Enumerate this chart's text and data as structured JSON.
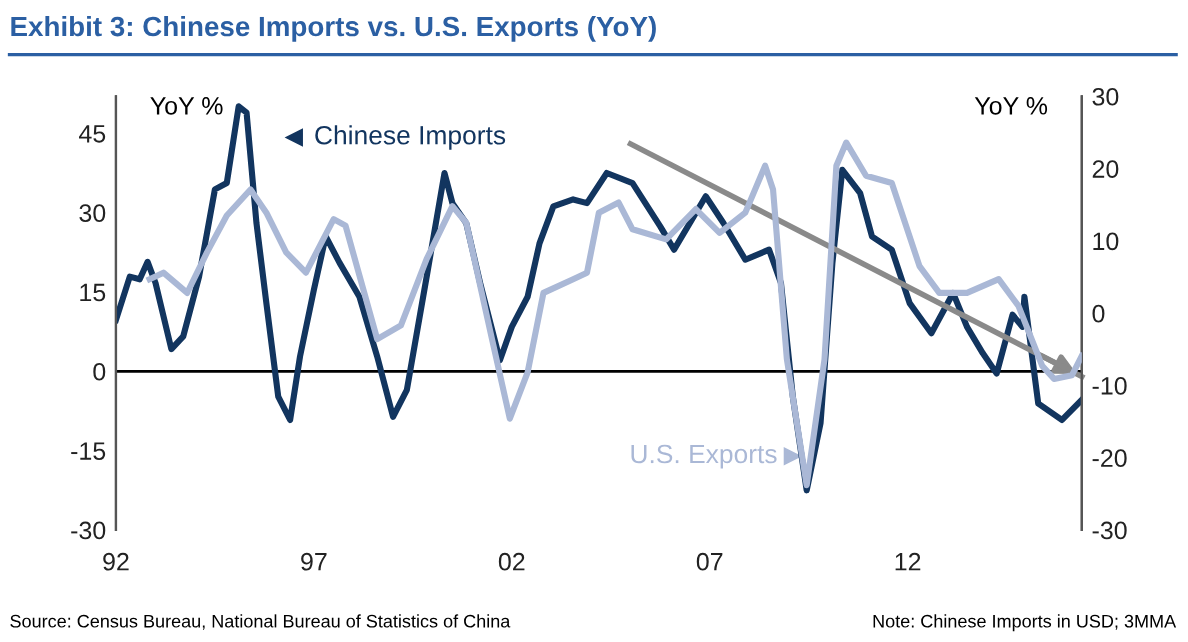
{
  "chart_data": {
    "type": "line",
    "title": "Exhibit 3: Chinese Imports vs. U.S. Exports (YoY)",
    "ylabel": "YoY %",
    "y2label": "YoY %",
    "xlim": [
      1992,
      2016.4
    ],
    "xticks": [
      {
        "value": 1992,
        "label": "92"
      },
      {
        "value": 1997,
        "label": "97"
      },
      {
        "value": 2002,
        "label": "02"
      },
      {
        "value": 2007,
        "label": "07"
      },
      {
        "value": 2012,
        "label": "12"
      }
    ],
    "ylim": [
      -30,
      52
    ],
    "yticks": [
      -30,
      -15,
      0,
      15,
      30,
      45
    ],
    "y2lim": [
      -30,
      30
    ],
    "y2ticks": [
      -30,
      -20,
      -10,
      0,
      10,
      20,
      30
    ],
    "grid": false,
    "legend": "top left",
    "ref_lines": [
      {
        "axis": "y",
        "value": 0,
        "color": "#000000"
      }
    ],
    "series": [
      {
        "name": "Chinese Imports",
        "color": "#12355f",
        "x": [
          1992.0,
          1992.35,
          1992.6,
          1992.8,
          1993.0,
          1993.4,
          1993.7,
          1994.1,
          1994.5,
          1994.8,
          1995.1,
          1995.3,
          1995.55,
          1995.8,
          1996.1,
          1996.4,
          1996.65,
          1997.0,
          1997.3,
          1997.65,
          1998.15,
          1998.6,
          1999.0,
          1999.35,
          1999.85,
          2000.3,
          2000.5,
          2000.85,
          2001.2,
          2001.7,
          2002.0,
          2002.4,
          2002.7,
          2003.05,
          2003.55,
          2003.9,
          2004.4,
          2005.05,
          2005.75,
          2006.1,
          2006.9,
          2007.35,
          2007.9,
          2008.5,
          2008.8,
          2009.1,
          2009.45,
          2009.8,
          2010.1,
          2010.35,
          2010.8,
          2011.1,
          2011.6,
          2012.05,
          2012.6,
          2013.15,
          2013.5,
          2013.9,
          2014.25,
          2014.65,
          2014.9,
          2014.95,
          2015.3,
          2015.9,
          2016.4
        ],
        "values": [
          9.7,
          17.9,
          17.4,
          20.7,
          16.7,
          4.2,
          6.6,
          17.9,
          34.4,
          35.6,
          50.1,
          48.9,
          28.0,
          12.9,
          -4.8,
          -9.2,
          2.8,
          15.4,
          25.5,
          20.5,
          14.1,
          2.8,
          -8.6,
          -3.5,
          17.9,
          37.5,
          31.8,
          28.0,
          16.7,
          2.1,
          8.4,
          14.1,
          24.2,
          31.2,
          32.5,
          31.8,
          37.5,
          35.6,
          27.4,
          23.0,
          33.1,
          28.0,
          21.1,
          23.0,
          16.7,
          -4.8,
          -22.5,
          -9.8,
          20.5,
          38.1,
          33.7,
          25.5,
          23.0,
          12.9,
          7.2,
          14.8,
          8.4,
          3.4,
          -0.4,
          10.7,
          8.4,
          14.1,
          -6.1,
          -9.2,
          -5.4
        ]
      },
      {
        "name": "U.S. Exports",
        "color": "#aab8d6",
        "axis": "y2",
        "x": [
          1992.85,
          1993.2,
          1993.8,
          1994.3,
          1994.8,
          1995.4,
          1995.8,
          1996.3,
          1996.8,
          1997.5,
          1997.8,
          1998.6,
          1999.2,
          1999.85,
          2000.5,
          2000.85,
          2001.5,
          2001.95,
          2002.4,
          2002.8,
          2003.55,
          2003.9,
          2004.2,
          2004.7,
          2005.05,
          2005.9,
          2006.65,
          2007.25,
          2007.9,
          2008.4,
          2008.6,
          2008.95,
          2009.45,
          2009.9,
          2010.2,
          2010.45,
          2010.95,
          2011.6,
          2012.3,
          2012.8,
          2013.5,
          2014.3,
          2014.8,
          2015.4,
          2015.7,
          2016.15,
          2016.4
        ],
        "values": [
          4.7,
          5.6,
          2.8,
          8.4,
          13.5,
          17.1,
          13.9,
          8.4,
          5.6,
          13.0,
          12.1,
          -3.6,
          -1.7,
          7.5,
          14.8,
          12.5,
          -3.6,
          -14.6,
          -8.2,
          2.8,
          4.7,
          5.6,
          13.9,
          15.3,
          11.6,
          10.2,
          14.4,
          11.1,
          13.9,
          20.4,
          17.1,
          -6.4,
          -23.8,
          -6.4,
          20.4,
          23.6,
          19.0,
          18.0,
          6.5,
          2.8,
          2.8,
          4.7,
          1.0,
          -7.3,
          -9.1,
          -8.6,
          -5.9
        ]
      },
      {
        "type": "line",
        "color": "#8a8a8a",
        "x": [
          2005.0,
          2016.4
        ],
        "values": [
          43,
          -1
        ]
      }
    ],
    "annotations": [
      "Source: Census Bureau, National Bureau of Statistics of China",
      "Note: Chinese Imports in USD; 3MMA"
    ]
  }
}
